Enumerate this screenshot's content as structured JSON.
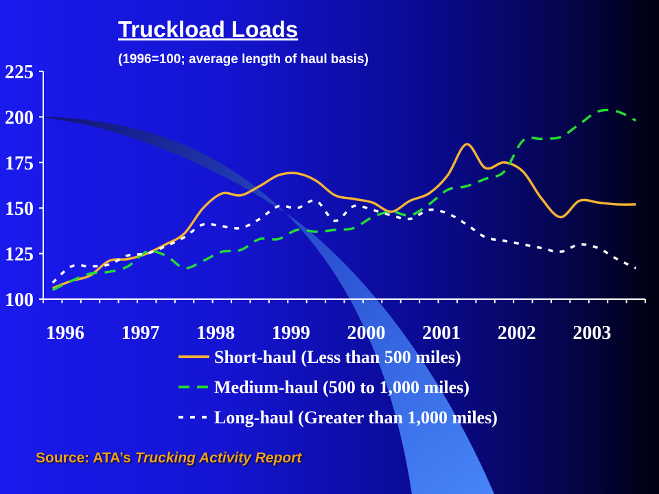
{
  "slide": {
    "title": "Truckload Loads",
    "subtitle": "(1996=100; average length of haul basis)",
    "source_prefix": "Source: ATA’s ",
    "source_title": "Trucking Activity Report"
  },
  "colors": {
    "background": "#1414d0",
    "text": "#ffffff",
    "source_text": "#f0a020"
  },
  "chart_data": {
    "type": "line",
    "title": "Truckload Loads",
    "subtitle": "(1996=100; average length of haul basis)",
    "ylim": [
      100,
      225
    ],
    "yticks": [
      "100",
      "125",
      "150",
      "175",
      "200",
      "225"
    ],
    "x_tick_labels": [
      "1996",
      "1997",
      "1998",
      "1999",
      "2000",
      "2001",
      "2002",
      "2003"
    ],
    "x_start_year": 1996,
    "grid": false,
    "legend_position": "bottom",
    "x": [
      1996.0,
      1996.25,
      1996.5,
      1996.75,
      1997.0,
      1997.25,
      1997.5,
      1997.75,
      1998.0,
      1998.25,
      1998.5,
      1998.75,
      1999.0,
      1999.25,
      1999.5,
      1999.75,
      2000.0,
      2000.25,
      2000.5,
      2000.75,
      2001.0,
      2001.25,
      2001.5,
      2001.75,
      2002.0,
      2002.25,
      2002.5,
      2002.75,
      2003.0,
      2003.25,
      2003.5,
      2003.75
    ],
    "series": [
      {
        "name": "Short-haul (Less than 500 miles)",
        "color": "#f5b335",
        "dash": "solid",
        "values": [
          106,
          110,
          113,
          121,
          122,
          125,
          130,
          136,
          150,
          158,
          157,
          162,
          168,
          169,
          165,
          157,
          155,
          153,
          148,
          154,
          158,
          168,
          185,
          172,
          175,
          170,
          155,
          145,
          154,
          153,
          152,
          152
        ]
      },
      {
        "name": "Medium-haul (500 to 1,000 miles)",
        "color": "#22dd33",
        "dash": "dashed",
        "values": [
          105,
          110,
          114,
          115,
          118,
          126,
          124,
          117,
          121,
          126,
          127,
          133,
          133,
          138,
          137,
          138,
          139,
          145,
          148,
          146,
          152,
          160,
          162,
          166,
          170,
          187,
          188,
          189,
          196,
          203,
          203,
          198
        ]
      },
      {
        "name": "Long-haul (Greater than 1,000 miles)",
        "color": "#ffffff",
        "dash": "dotted",
        "values": [
          109,
          118,
          118,
          119,
          124,
          125,
          129,
          134,
          141,
          140,
          139,
          144,
          151,
          150,
          154,
          143,
          151,
          149,
          146,
          144,
          149,
          147,
          141,
          134,
          132,
          130,
          128,
          126,
          130,
          128,
          122,
          117
        ]
      }
    ]
  }
}
